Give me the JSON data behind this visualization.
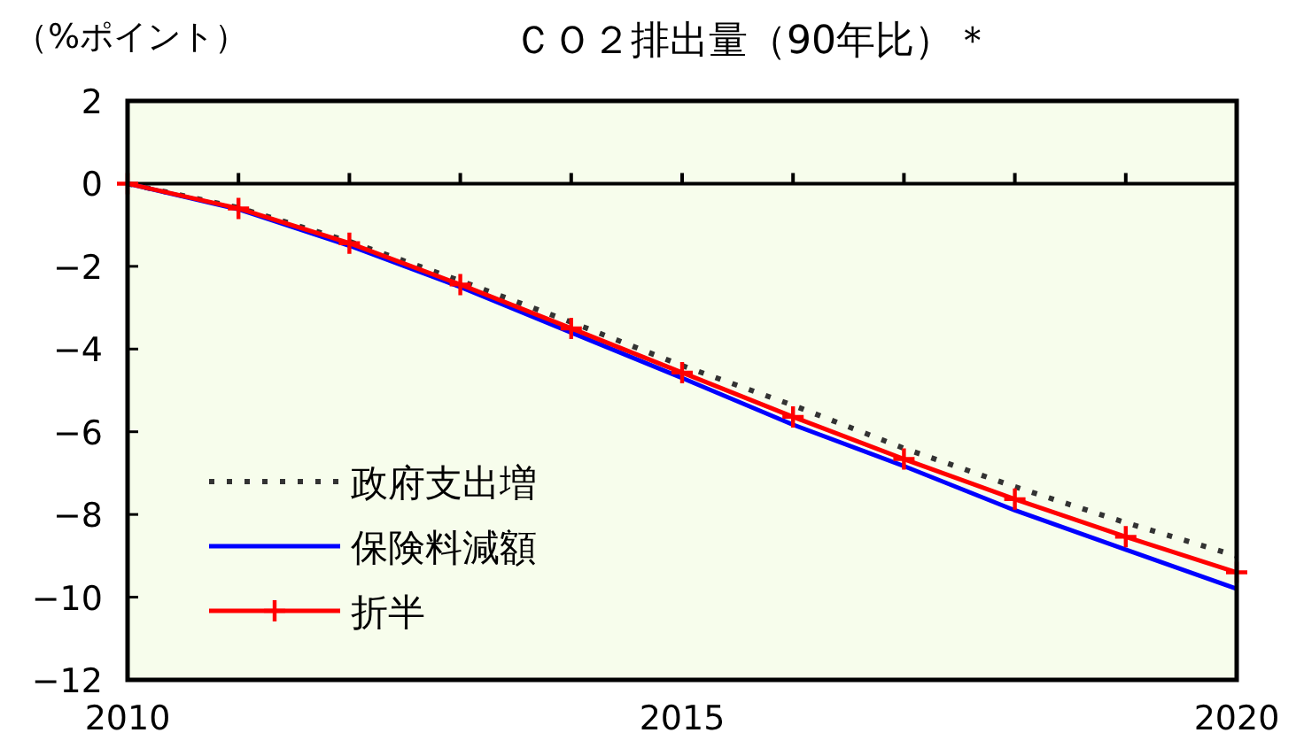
{
  "chart_data": {
    "type": "line",
    "title": "ＣＯ２排出量（90年比）＊",
    "ylabel": "（%ポイント）",
    "x": [
      2010,
      2011,
      2012,
      2013,
      2014,
      2015,
      2016,
      2017,
      2018,
      2019,
      2020
    ],
    "xlim": [
      2010,
      2020
    ],
    "xticks": [
      2010,
      2015,
      2020
    ],
    "ylim": [
      -12,
      2
    ],
    "yticks": [
      -12,
      -10,
      -8,
      -6,
      -4,
      -2,
      0,
      2
    ],
    "legend": "bottom left",
    "series": [
      {
        "name": "政府支出増",
        "color": "#333333",
        "line_style": "dotted",
        "marker": "none",
        "values": [
          0,
          -0.58,
          -1.4,
          -2.35,
          -3.35,
          -4.4,
          -5.36,
          -6.4,
          -7.33,
          -8.2,
          -9.0
        ]
      },
      {
        "name": "保険料減額",
        "color": "#0000ff",
        "line_style": "solid",
        "marker": "none",
        "values": [
          0,
          -0.62,
          -1.5,
          -2.5,
          -3.6,
          -4.7,
          -5.83,
          -6.83,
          -7.9,
          -8.85,
          -9.8
        ]
      },
      {
        "name": "折半",
        "color": "#ff0000",
        "line_style": "solid",
        "marker": "cross",
        "values": [
          0,
          -0.6,
          -1.44,
          -2.44,
          -3.5,
          -4.57,
          -5.64,
          -6.66,
          -7.63,
          -8.54,
          -9.4
        ]
      }
    ]
  }
}
